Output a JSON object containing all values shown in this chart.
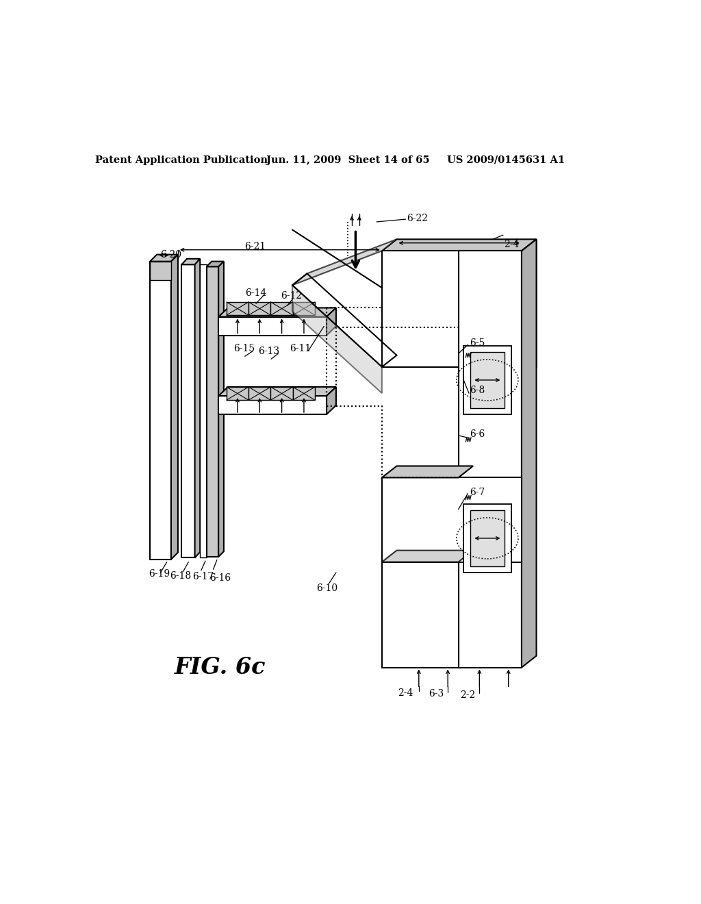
{
  "header_left": "Patent Application Publication",
  "header_mid": "Jun. 11, 2009  Sheet 14 of 65",
  "header_right": "US 2009/0145631 A1",
  "fig_label": "FIG. 6c",
  "bg_color": "#ffffff"
}
